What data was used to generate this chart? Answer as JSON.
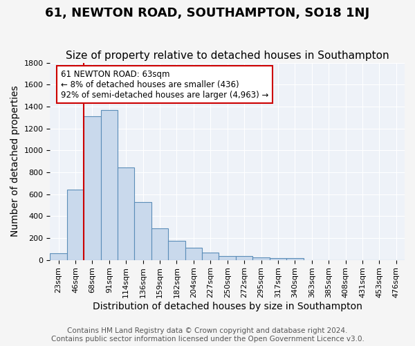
{
  "title": "61, NEWTON ROAD, SOUTHAMPTON, SO18 1NJ",
  "subtitle": "Size of property relative to detached houses in Southampton",
  "xlabel": "Distribution of detached houses by size in Southampton",
  "ylabel": "Number of detached properties",
  "bin_labels": [
    "23sqm",
    "46sqm",
    "68sqm",
    "91sqm",
    "114sqm",
    "136sqm",
    "159sqm",
    "182sqm",
    "204sqm",
    "227sqm",
    "250sqm",
    "272sqm",
    "295sqm",
    "317sqm",
    "340sqm",
    "363sqm",
    "385sqm",
    "408sqm",
    "431sqm",
    "453sqm",
    "476sqm"
  ],
  "bar_values": [
    60,
    640,
    1310,
    1370,
    845,
    525,
    290,
    175,
    110,
    70,
    35,
    35,
    25,
    15,
    15,
    0,
    0,
    0,
    0,
    0,
    0
  ],
  "bar_color": "#c9d9ec",
  "bar_edge_color": "#5b8db8",
  "ylim": [
    0,
    1800
  ],
  "red_line_bin_index": 2,
  "annotation_text": "61 NEWTON ROAD: 63sqm\n← 8% of detached houses are smaller (436)\n92% of semi-detached houses are larger (4,963) →",
  "annotation_box_color": "#ffffff",
  "annotation_border_color": "#cc0000",
  "footer_text": "Contains HM Land Registry data © Crown copyright and database right 2024.\nContains public sector information licensed under the Open Government Licence v3.0.",
  "background_color": "#eef2f8",
  "grid_color": "#ffffff",
  "title_fontsize": 13,
  "subtitle_fontsize": 11,
  "axis_label_fontsize": 10,
  "tick_fontsize": 8,
  "footer_fontsize": 7.5
}
